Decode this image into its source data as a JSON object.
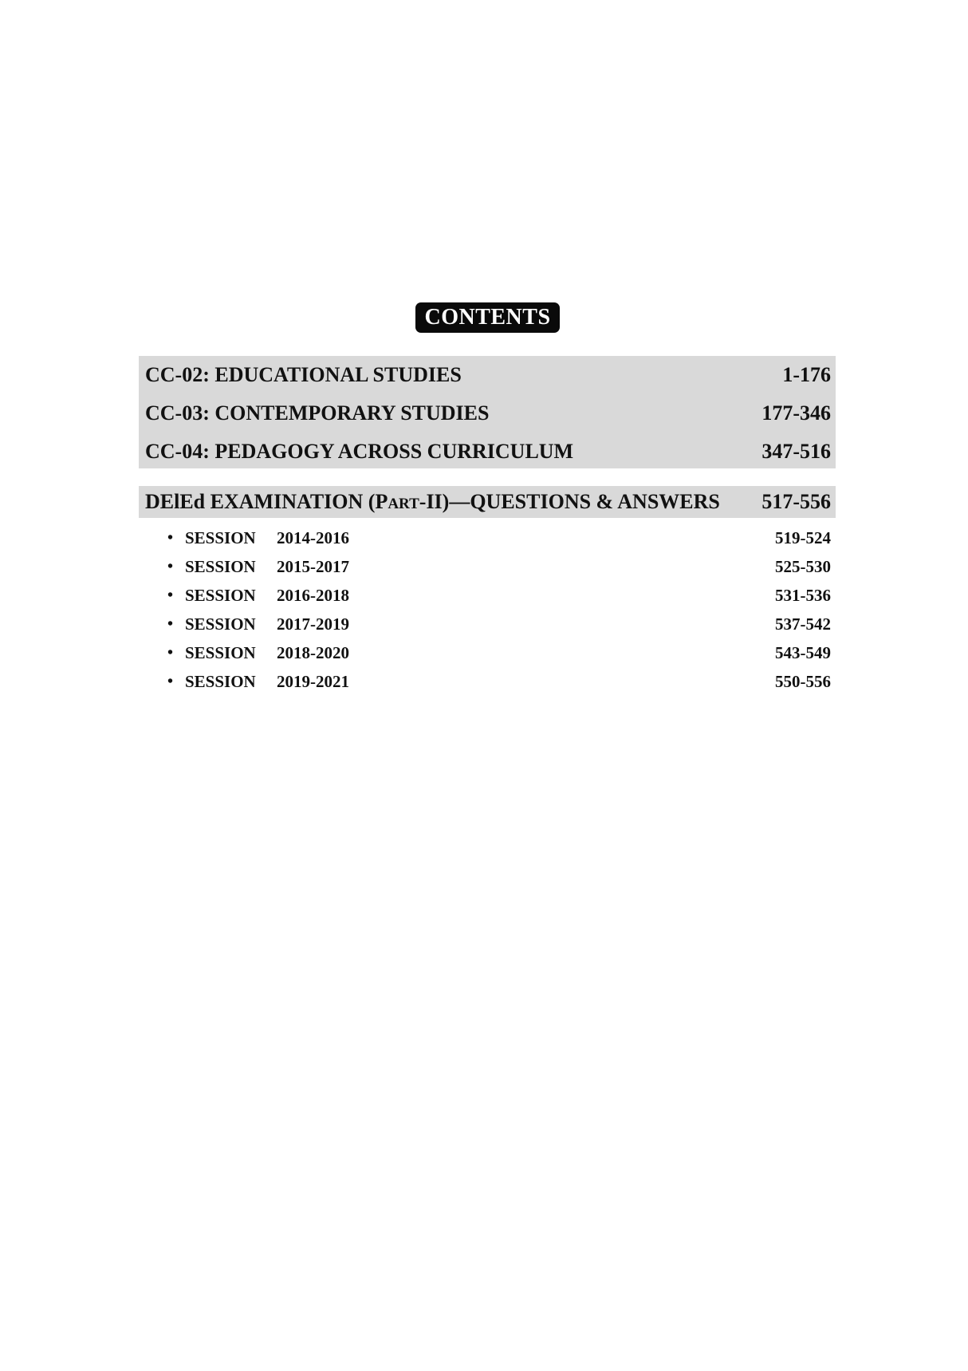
{
  "title": "CONTENTS",
  "sections": [
    {
      "label": "CC-02: EDUCATIONAL STUDIES",
      "pages": "1-176"
    },
    {
      "label": "CC-03: CONTEMPORARY STUDIES",
      "pages": "177-346"
    },
    {
      "label": "CC-04: PEDAGOGY ACROSS CURRICULUM",
      "pages": "347-516"
    }
  ],
  "exam": {
    "label_prefix": "DElEd EXAMINATION (P",
    "label_smallcaps": "ART",
    "label_suffix": "-II)—QUESTIONS & ANSWERS",
    "pages": "517-556"
  },
  "sessions": [
    {
      "bullet": "•",
      "label": "SESSION",
      "years": "2014-2016",
      "pages": "519-524"
    },
    {
      "bullet": "•",
      "label": "SESSION",
      "years": "2015-2017",
      "pages": "525-530"
    },
    {
      "bullet": "•",
      "label": "SESSION",
      "years": "2016-2018",
      "pages": "531-536"
    },
    {
      "bullet": "•",
      "label": "SESSION",
      "years": "2017-2019",
      "pages": "537-542"
    },
    {
      "bullet": "•",
      "label": "SESSION",
      "years": "2018-2020",
      "pages": "543-549"
    },
    {
      "bullet": "•",
      "label": "SESSION",
      "years": "2019-2021",
      "pages": "550-556"
    }
  ],
  "colors": {
    "highlight": "#d9d9d9",
    "title_bg": "#0a0a0a"
  }
}
